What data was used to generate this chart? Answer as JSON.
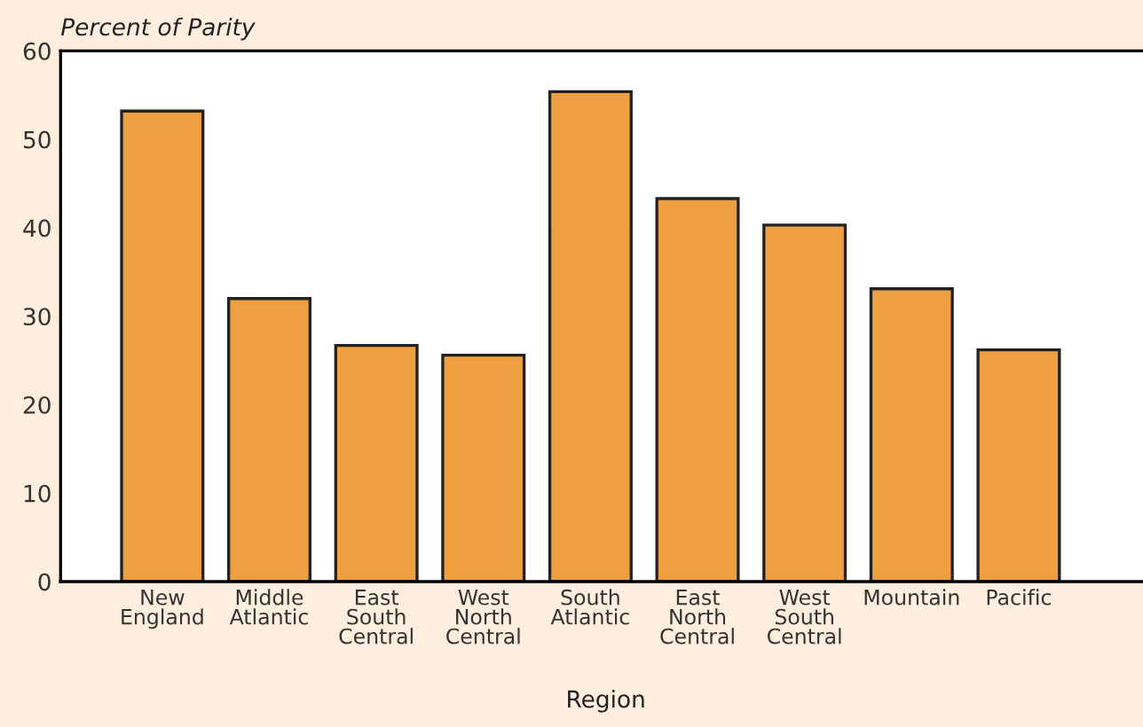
{
  "chart_data": {
    "type": "bar",
    "ylabel": "Percent of Parity",
    "xlabel": "Region",
    "categories": [
      "New\nEngland",
      "Middle\nAtlantic",
      "East\nSouth\nCentral",
      "West\nNorth\nCentral",
      "South\nAtlantic",
      "East\nNorth\nCentral",
      "West\nSouth\nCentral",
      "Mountain",
      "Pacific"
    ],
    "values": [
      53.2,
      32.0,
      26.7,
      25.6,
      55.4,
      43.3,
      40.3,
      33.1,
      26.2
    ],
    "color": "#eea041",
    "ylim": [
      0,
      60
    ],
    "yticks": [
      0,
      10,
      20,
      30,
      40,
      50,
      60
    ],
    "grid": false
  }
}
